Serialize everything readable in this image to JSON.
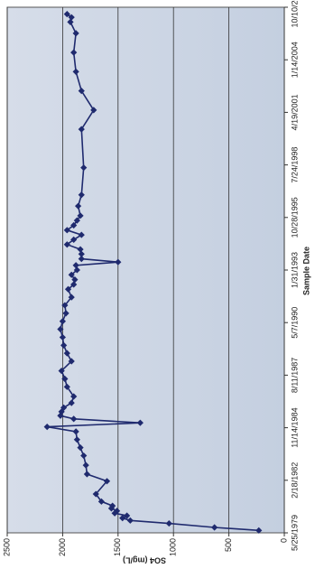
{
  "chart_data": {
    "type": "line",
    "x_label": "Sample Date",
    "y_label": "SO4 (mg/L)",
    "xlim": [
      "1979-05-25",
      "2006-10-10"
    ],
    "xticks": [
      {
        "value": "1979-05-25",
        "label": "5/25/1979"
      },
      {
        "value": "1982-02-18",
        "label": "2/18/1982"
      },
      {
        "value": "1984-11-14",
        "label": "11/14/1984"
      },
      {
        "value": "1987-08-11",
        "label": "8/11/1987"
      },
      {
        "value": "1990-05-07",
        "label": "5/7/1990"
      },
      {
        "value": "1993-01-31",
        "label": "1/31/1993"
      },
      {
        "value": "1995-10-28",
        "label": "10/28/1995"
      },
      {
        "value": "1998-07-24",
        "label": "7/24/1998"
      },
      {
        "value": "2001-04-19",
        "label": "4/19/2001"
      },
      {
        "value": "2004-01-14",
        "label": "1/14/2004"
      },
      {
        "value": "2006-10-10",
        "label": "10/10/2006"
      }
    ],
    "ylim": [
      0,
      2500
    ],
    "yticks": [
      0,
      500,
      1000,
      1500,
      2000,
      2500
    ],
    "grid": true,
    "series": [
      {
        "color": "#1f2a6e",
        "x": [
          "1979-07-10",
          "1979-09-05",
          "1979-11-20",
          "1980-01-15",
          "1980-03-01",
          "1980-04-15",
          "1980-06-01",
          "1980-07-15",
          "1980-09-01",
          "1980-10-20",
          "1981-01-10",
          "1981-06-01",
          "1982-02-01",
          "1982-06-15",
          "1982-12-01",
          "1983-06-01",
          "1983-11-01",
          "1984-04-01",
          "1984-09-01",
          "1984-12-01",
          "1985-02-15",
          "1985-05-01",
          "1985-07-01",
          "1985-09-15",
          "1985-12-01",
          "1986-03-01",
          "1986-07-01",
          "1987-01-01",
          "1987-06-01",
          "1987-11-01",
          "1988-05-01",
          "1988-10-01",
          "1989-03-01",
          "1989-08-01",
          "1990-01-01",
          "1990-06-01",
          "1990-11-01",
          "1991-04-01",
          "1991-09-01",
          "1992-02-01",
          "1992-05-01",
          "1992-08-01",
          "1992-11-01",
          "1993-02-01",
          "1993-05-01",
          "1993-07-01",
          "1993-09-01",
          "1993-12-01",
          "1994-03-01",
          "1994-06-01",
          "1994-09-01",
          "1994-12-01",
          "1995-03-01",
          "1995-06-01",
          "1995-09-01",
          "1995-12-01",
          "1996-06-01",
          "1997-01-01",
          "1998-06-01",
          "2000-06-01",
          "2001-06-01",
          "2002-06-01",
          "2003-06-01",
          "2004-06-01",
          "2005-06-01",
          "2006-01-01",
          "2006-04-01",
          "2006-06-01"
        ],
        "values": [
          230,
          630,
          1040,
          1390,
          1460,
          1420,
          1530,
          1510,
          1560,
          1550,
          1650,
          1700,
          1600,
          1780,
          1790,
          1810,
          1840,
          1870,
          1880,
          2140,
          1300,
          1900,
          2020,
          2010,
          1990,
          1920,
          1900,
          1960,
          1980,
          2010,
          1920,
          1960,
          1990,
          2000,
          2020,
          2000,
          1970,
          1980,
          1920,
          1950,
          1900,
          1890,
          1920,
          1870,
          1880,
          1500,
          1830,
          1830,
          1840,
          1960,
          1900,
          1830,
          1960,
          1900,
          1870,
          1840,
          1860,
          1830,
          1810,
          1830,
          1720,
          1830,
          1880,
          1900,
          1880,
          1930,
          1920,
          1960
        ]
      }
    ]
  }
}
